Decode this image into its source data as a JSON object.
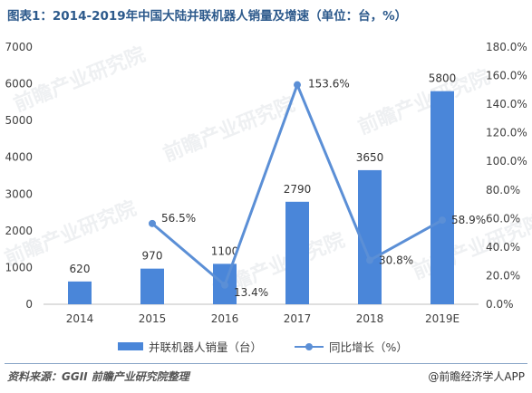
{
  "title": "图表1：2014-2019年中国大陆并联机器人销量及增速（单位：台，%）",
  "watermark": "前瞻产业研究院",
  "colors": {
    "bar": "#4a86d9",
    "line": "#5b8fd6",
    "title": "#2d5a8c"
  },
  "chart_data": {
    "type": "bar",
    "categories": [
      "2014",
      "2015",
      "2016",
      "2017",
      "2018",
      "2019E"
    ],
    "series": [
      {
        "name": "并联机器人销量（台）",
        "type": "bar",
        "axis": "left",
        "values": [
          620,
          970,
          1100,
          2790,
          3650,
          5800
        ],
        "labels": [
          "620",
          "970",
          "1100",
          "2790",
          "3650",
          "5800"
        ]
      },
      {
        "name": "同比增长（%）",
        "type": "line",
        "axis": "right",
        "values": [
          null,
          56.5,
          13.4,
          153.6,
          30.8,
          58.9
        ],
        "labels": [
          "",
          "56.5%",
          "13.4%",
          "153.6%",
          "30.8%",
          "58.9%"
        ]
      }
    ],
    "y_left": {
      "min": 0,
      "max": 7000,
      "ticks": [
        0,
        1000,
        2000,
        3000,
        4000,
        5000,
        6000,
        7000
      ],
      "tick_labels": [
        "0",
        "1000",
        "2000",
        "3000",
        "4000",
        "5000",
        "6000",
        "7000"
      ]
    },
    "y_right": {
      "min": 0,
      "max": 180,
      "ticks": [
        0,
        20,
        40,
        60,
        80,
        100,
        120,
        140,
        160,
        180
      ],
      "tick_labels": [
        "0.0%",
        "20.0%",
        "40.0%",
        "60.0%",
        "80.0%",
        "100.0%",
        "120.0%",
        "140.0%",
        "160.0%",
        "180.0%"
      ]
    },
    "grid": false,
    "legend": "bottom"
  },
  "footer": {
    "source": "资料来源：GGII 前瞻产业研究院整理",
    "brand": "@前瞻经济学人APP"
  }
}
